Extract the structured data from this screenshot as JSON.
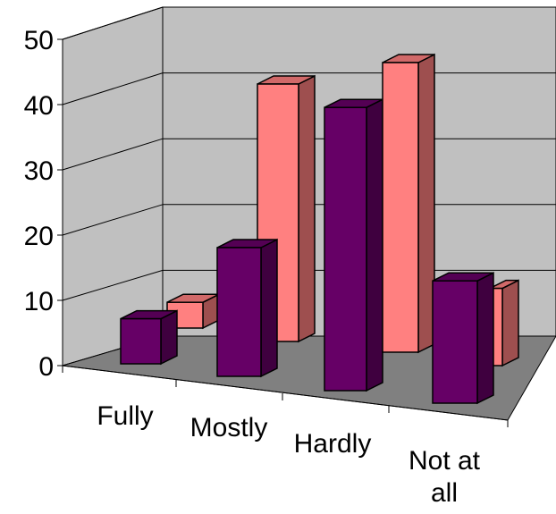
{
  "chart_data": {
    "type": "bar",
    "categories": [
      "Fully",
      "Mostly",
      "Hardly",
      "Not at all"
    ],
    "category_labels": [
      [
        "Fully"
      ],
      [
        "Mostly"
      ],
      [
        "Hardly"
      ],
      [
        "Not at",
        "all"
      ]
    ],
    "series": [
      {
        "values": [
          7,
          20,
          44,
          19
        ],
        "color": "#660066"
      },
      {
        "values": [
          4,
          40,
          45,
          12
        ],
        "color": "#ff8080"
      }
    ],
    "y_ticks": [
      "0",
      "10",
      "20",
      "30",
      "40",
      "50"
    ],
    "ylim": [
      0,
      50
    ],
    "grid": true,
    "legend": "none",
    "style": "3d-clustered-column"
  }
}
